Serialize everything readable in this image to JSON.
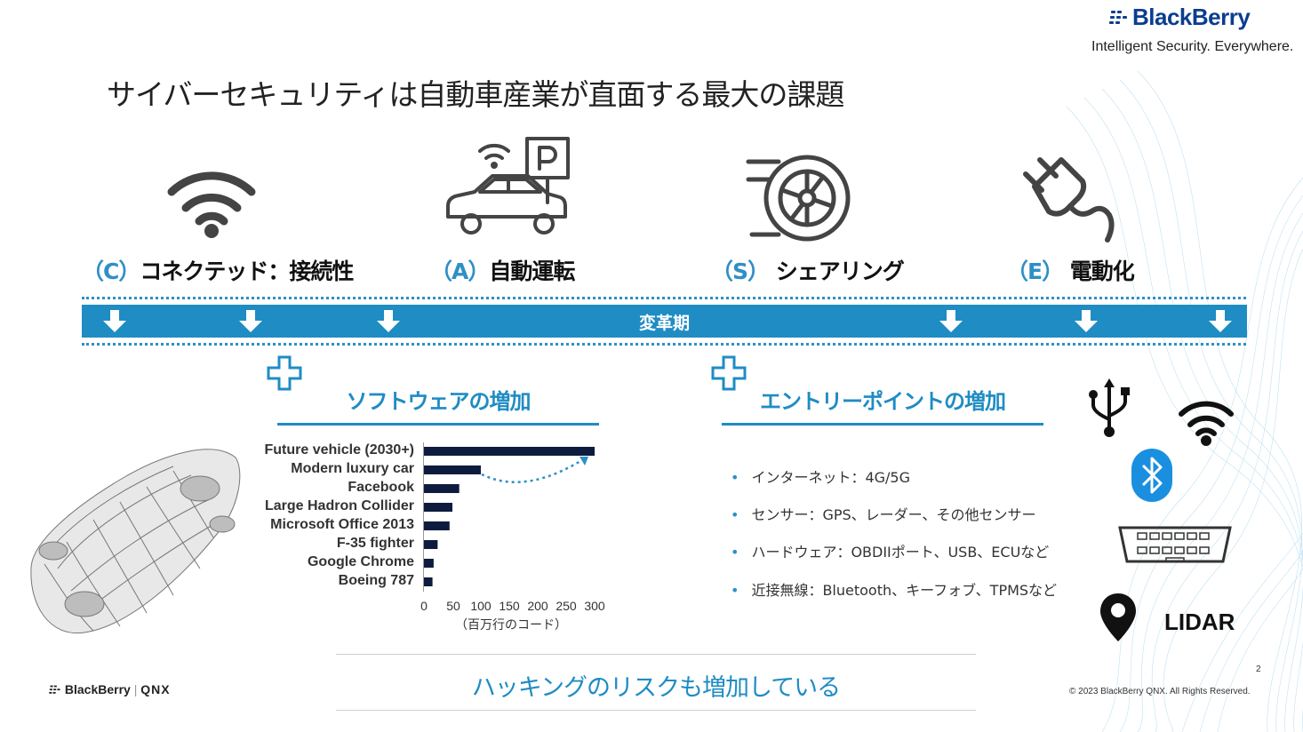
{
  "brand": {
    "logo_text": "BlackBerry",
    "tagline": "Intelligent Security. Everywhere.",
    "footer_logo": "BlackBerry",
    "footer_logo_second": "QNX",
    "copyright": "© 2023 BlackBerry QNX. All Rights Reserved.",
    "page_number": "2"
  },
  "slide": {
    "title": "サイバーセキュリティは自動車産業が直面する最大の課題"
  },
  "categories": [
    {
      "letter": "（C）",
      "label": "コネクテッド：接続性",
      "icon": "wifi-icon"
    },
    {
      "letter": "（A）",
      "label": "自動運転",
      "icon": "autonomous-parking-car-icon"
    },
    {
      "letter": "（S）",
      "label": "シェアリング",
      "icon": "wheel-icon"
    },
    {
      "letter": "（E）",
      "label": "電動化",
      "icon": "electric-plug-icon"
    }
  ],
  "band": {
    "label": "変革期"
  },
  "software": {
    "title": "ソフトウェアの増加",
    "chart_data": {
      "type": "bar",
      "orientation": "horizontal",
      "categories": [
        "Future vehicle (2030+)",
        "Modern luxury car",
        "Facebook",
        "Large Hadron Collider",
        "Microsoft Office 2013",
        "F-35 fighter",
        "Google Chrome",
        "Boeing 787"
      ],
      "values": [
        300,
        100,
        62,
        50,
        45,
        24,
        17,
        15
      ],
      "xticks": [
        "0",
        "50",
        "100",
        "150",
        "200",
        "250",
        "300"
      ],
      "xlim": [
        0,
        300
      ],
      "xlabel": "（百万行のコード）",
      "bar_color": "#0d1b3e",
      "annotation": "dotted arrow from Modern luxury car bar toward Future vehicle bar"
    }
  },
  "entry_points": {
    "title": "エントリーポイントの増加",
    "bullets": [
      "インターネット：4G/5G",
      "センサー：GPS、レーダー、その他センサー",
      "ハードウェア：OBDIIポート、USB、ECUなど",
      "近接無線：Bluetooth、キーフォブ、TPMSなど"
    ],
    "icons": [
      "usb-icon",
      "wifi-icon",
      "bluetooth-icon",
      "obd-port-icon",
      "location-pin-icon"
    ],
    "lidar_label": "LIDAR"
  },
  "risk": {
    "text": "ハッキングのリスクも増加している"
  },
  "colors": {
    "accent": "#1f8cc4",
    "brand": "#0b3d91",
    "bar": "#0d1b3e"
  }
}
